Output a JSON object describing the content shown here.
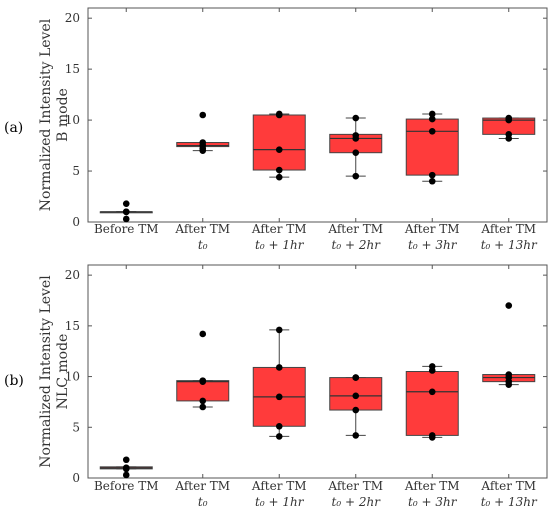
{
  "chart_data": [
    {
      "type": "box",
      "panel_label": "(a)",
      "ylabel_line1": "Normalized Intensity Level",
      "ylabel_line2": "B mode",
      "ylim": [
        0,
        21
      ],
      "yticks": [
        "0",
        "5",
        "10",
        "15",
        "20"
      ],
      "categories": [
        {
          "line1": "Before TM",
          "line2": ""
        },
        {
          "line1": "After TM",
          "line2": "t₀"
        },
        {
          "line1": "After TM",
          "line2": "t₀ + 1hr"
        },
        {
          "line1": "After TM",
          "line2": "t₀ + 2hr"
        },
        {
          "line1": "After TM",
          "line2": "t₀ + 3hr"
        },
        {
          "line1": "After TM",
          "line2": "t₀ + 13hr"
        }
      ],
      "boxes": [
        {
          "q1": 1.0,
          "median": 1.0,
          "q3": 1.0,
          "whisker_low": 1.0,
          "whisker_high": 1.0,
          "points": [
            1.8,
            1.0,
            1.0,
            1.0,
            0.3
          ]
        },
        {
          "q1": 7.4,
          "median": 7.5,
          "q3": 7.8,
          "whisker_low": 7.0,
          "whisker_high": 7.8,
          "points": [
            10.5,
            7.8,
            7.5,
            7.2,
            7.0
          ]
        },
        {
          "q1": 5.1,
          "median": 7.1,
          "q3": 10.5,
          "whisker_low": 4.4,
          "whisker_high": 10.6,
          "points": [
            10.6,
            10.5,
            7.1,
            5.1,
            4.4
          ]
        },
        {
          "q1": 6.8,
          "median": 8.2,
          "q3": 8.6,
          "whisker_low": 4.5,
          "whisker_high": 10.2,
          "points": [
            10.2,
            8.5,
            8.2,
            6.8,
            4.5
          ]
        },
        {
          "q1": 4.6,
          "median": 8.9,
          "q3": 10.1,
          "whisker_low": 4.0,
          "whisker_high": 10.6,
          "points": [
            10.6,
            10.1,
            8.9,
            4.6,
            4.0
          ]
        },
        {
          "q1": 8.6,
          "median": 10.0,
          "q3": 10.2,
          "whisker_low": 8.2,
          "whisker_high": 10.2,
          "points": [
            10.2,
            10.1,
            10.0,
            8.6,
            8.2
          ]
        }
      ]
    },
    {
      "type": "box",
      "panel_label": "(b)",
      "ylabel_line1": "Normalized Intensity Level",
      "ylabel_line2": "NLC mode",
      "ylim": [
        0,
        21
      ],
      "yticks": [
        "0",
        "5",
        "10",
        "15",
        "20"
      ],
      "categories": [
        {
          "line1": "Before TM",
          "line2": ""
        },
        {
          "line1": "After TM",
          "line2": "t₀"
        },
        {
          "line1": "After TM",
          "line2": "t₀ + 1hr"
        },
        {
          "line1": "After TM",
          "line2": "t₀ + 2hr"
        },
        {
          "line1": "After TM",
          "line2": "t₀ + 3hr"
        },
        {
          "line1": "After TM",
          "line2": "t₀ + 13hr"
        }
      ],
      "boxes": [
        {
          "q1": 0.9,
          "median": 1.0,
          "q3": 1.1,
          "whisker_low": 0.9,
          "whisker_high": 1.1,
          "points": [
            1.8,
            1.0,
            1.0,
            0.9,
            0.3
          ]
        },
        {
          "q1": 7.6,
          "median": 9.5,
          "q3": 9.6,
          "whisker_low": 7.0,
          "whisker_high": 9.6,
          "points": [
            14.2,
            9.6,
            9.5,
            7.6,
            7.0
          ]
        },
        {
          "q1": 5.1,
          "median": 8.0,
          "q3": 10.9,
          "whisker_low": 4.1,
          "whisker_high": 14.6,
          "points": [
            14.6,
            10.9,
            8.0,
            5.1,
            4.1
          ]
        },
        {
          "q1": 6.7,
          "median": 8.1,
          "q3": 9.9,
          "whisker_low": 4.2,
          "whisker_high": 9.9,
          "points": [
            9.9,
            9.9,
            8.1,
            6.7,
            4.2
          ]
        },
        {
          "q1": 4.2,
          "median": 8.5,
          "q3": 10.5,
          "whisker_low": 4.0,
          "whisker_high": 11.0,
          "points": [
            11.0,
            10.6,
            8.5,
            4.2,
            4.0
          ]
        },
        {
          "q1": 9.5,
          "median": 9.9,
          "q3": 10.2,
          "whisker_low": 9.2,
          "whisker_high": 10.2,
          "points": [
            17.0,
            10.2,
            9.9,
            9.5,
            9.2
          ]
        }
      ]
    }
  ],
  "colors": {
    "box_fill": "#ff3b3b",
    "box_stroke": "#444444",
    "median": "#333333",
    "point": "#000000",
    "axis": "#555555"
  }
}
